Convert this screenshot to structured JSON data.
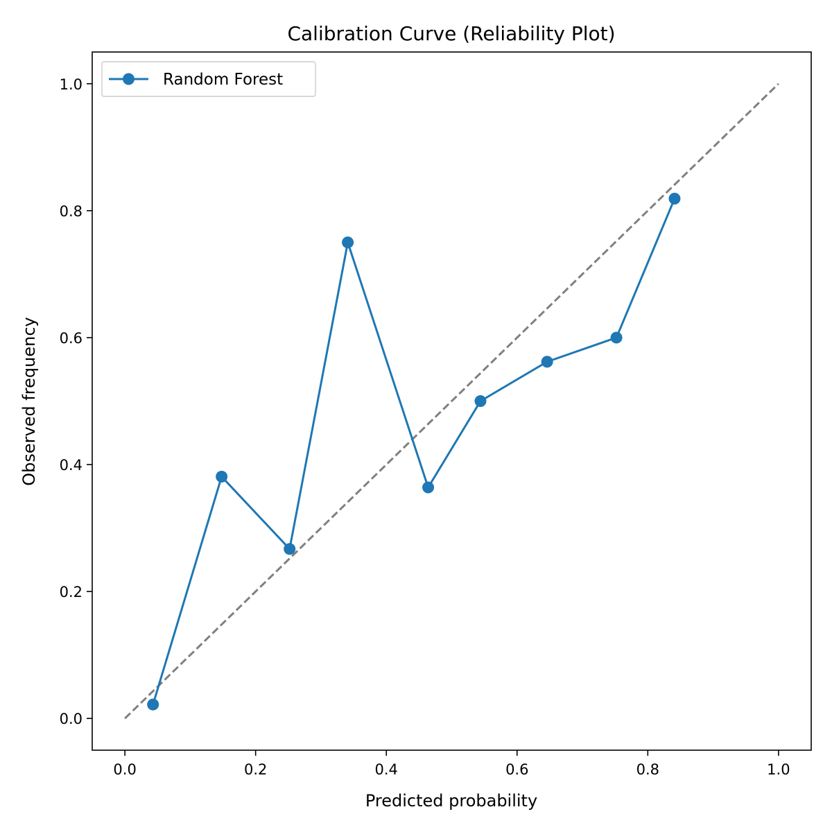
{
  "chart_data": {
    "type": "line",
    "title": "Calibration Curve (Reliability Plot)",
    "xlabel": "Predicted probability",
    "ylabel": "Observed frequency",
    "xlim": [
      -0.05,
      1.05
    ],
    "ylim": [
      -0.05,
      1.05
    ],
    "xticks": [
      0.0,
      0.2,
      0.4,
      0.6,
      0.8,
      1.0
    ],
    "xtick_labels": [
      "0.0",
      "0.2",
      "0.4",
      "0.6",
      "0.8",
      "1.0"
    ],
    "yticks": [
      0.0,
      0.2,
      0.4,
      0.6,
      0.8,
      1.0
    ],
    "ytick_labels": [
      "0.0",
      "0.2",
      "0.4",
      "0.6",
      "0.8",
      "1.0"
    ],
    "grid": false,
    "legend_position": "top-left",
    "series": [
      {
        "name": "Random Forest",
        "color": "#1f77b4",
        "marker": "circle",
        "x": [
          0.043,
          0.148,
          0.252,
          0.341,
          0.464,
          0.544,
          0.646,
          0.752,
          0.841
        ],
        "y": [
          0.022,
          0.381,
          0.267,
          0.75,
          0.364,
          0.5,
          0.562,
          0.6,
          0.819
        ]
      }
    ],
    "reference_line": {
      "color": "#808080",
      "style": "dashed",
      "x": [
        0.0,
        1.0
      ],
      "y": [
        0.0,
        1.0
      ]
    }
  }
}
